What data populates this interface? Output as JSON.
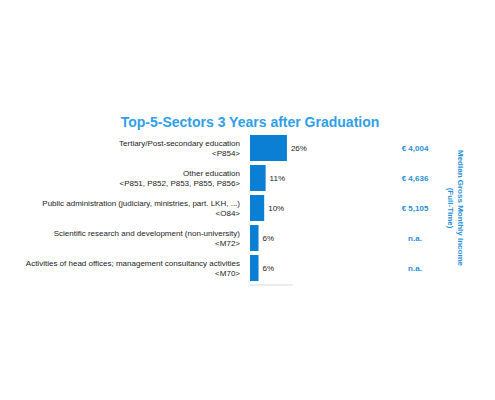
{
  "chart_data": {
    "type": "bar",
    "orientation": "horizontal",
    "title": "Top-5-Sectors 3 Years after Graduation",
    "categories": [
      "Tertiary/Post-secondary education\n<P854>",
      "Other education\n<P851, P852, P853, P855, P856>",
      "Public administration (judiciary, ministries, part. LKH, ...)\n<O84>",
      "Scientific research and development (non-university)\n<M72>",
      "Activities of head offices; management consultancy activities\n<M70>"
    ],
    "values": [
      26,
      11,
      10,
      6,
      6
    ],
    "value_labels": [
      "26%",
      "11%",
      "10%",
      "6%",
      "6%"
    ],
    "data_labels": true,
    "color": "#0a7fd4",
    "xlim": [
      0,
      30
    ],
    "tick_labels": false,
    "grid": false,
    "income": {
      "title": "Median Gross Monthly Income\n(Full-Time)",
      "values": [
        4004,
        4636,
        5105,
        null,
        null
      ],
      "value_labels": [
        "€ 4,004",
        "€ 4,636",
        "€ 5,105",
        "n.a.",
        "n.a."
      ]
    }
  }
}
